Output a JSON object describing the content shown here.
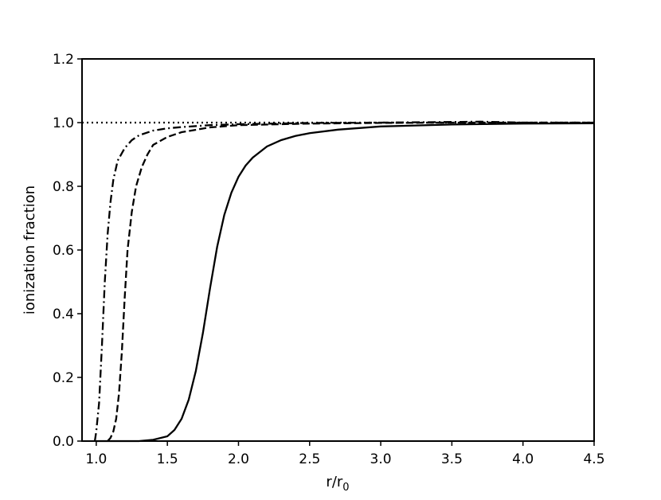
{
  "chart_data": {
    "type": "line",
    "title": "",
    "xlabel": "r/r",
    "xlabel_subscript": "0",
    "ylabel": "ionization fraction",
    "xlim": [
      0.9,
      4.5
    ],
    "ylim": [
      0.0,
      1.2
    ],
    "x_ticks": [
      1.0,
      1.5,
      2.0,
      2.5,
      3.0,
      3.5,
      4.0,
      4.5
    ],
    "x_tick_labels": [
      "1.0",
      "1.5",
      "2.0",
      "2.5",
      "3.0",
      "3.5",
      "4.0",
      "4.5"
    ],
    "y_ticks": [
      0.0,
      0.2,
      0.4,
      0.6,
      0.8,
      1.0,
      1.2
    ],
    "y_tick_labels": [
      "0.0",
      "0.2",
      "0.4",
      "0.6",
      "0.8",
      "1.0",
      "1.2"
    ],
    "grid": false,
    "legend": "none",
    "line_color": "#000000",
    "series": [
      {
        "style": "solid",
        "x": [
          1.0,
          1.3,
          1.4,
          1.5,
          1.55,
          1.6,
          1.65,
          1.7,
          1.75,
          1.8,
          1.85,
          1.9,
          1.95,
          2.0,
          2.05,
          2.1,
          2.2,
          2.3,
          2.4,
          2.5,
          2.7,
          3.0,
          3.5,
          4.0,
          4.5
        ],
        "y": [
          0.0,
          0.0,
          0.004,
          0.015,
          0.035,
          0.07,
          0.13,
          0.22,
          0.34,
          0.48,
          0.61,
          0.71,
          0.78,
          0.83,
          0.865,
          0.89,
          0.925,
          0.945,
          0.958,
          0.967,
          0.978,
          0.988,
          0.994,
          0.997,
          0.998
        ]
      },
      {
        "style": "dashed",
        "x": [
          1.08,
          1.1,
          1.12,
          1.14,
          1.16,
          1.18,
          1.2,
          1.22,
          1.25,
          1.28,
          1.32,
          1.36,
          1.4,
          1.5,
          1.6,
          1.8,
          2.0,
          2.5,
          3.0,
          3.5,
          4.0,
          4.5
        ],
        "y": [
          0.0,
          0.01,
          0.03,
          0.07,
          0.15,
          0.28,
          0.45,
          0.6,
          0.72,
          0.8,
          0.86,
          0.9,
          0.93,
          0.955,
          0.97,
          0.985,
          0.992,
          0.997,
          0.999,
          1.0,
          1.0,
          1.0
        ]
      },
      {
        "style": "dashdot",
        "x": [
          0.99,
          1.0,
          1.02,
          1.04,
          1.06,
          1.08,
          1.1,
          1.12,
          1.15,
          1.2,
          1.25,
          1.3,
          1.4,
          1.5,
          1.6,
          1.8,
          2.0,
          2.5,
          3.0,
          3.5,
          3.7,
          4.0,
          4.5
        ],
        "y": [
          0.0,
          0.03,
          0.12,
          0.3,
          0.5,
          0.65,
          0.75,
          0.82,
          0.88,
          0.92,
          0.945,
          0.96,
          0.975,
          0.982,
          0.986,
          0.992,
          0.995,
          0.999,
          1.0,
          1.002,
          1.003,
          1.0,
          1.0
        ]
      },
      {
        "style": "dotted",
        "x": [
          0.9,
          4.5
        ],
        "y": [
          1.0,
          1.0
        ]
      }
    ]
  }
}
